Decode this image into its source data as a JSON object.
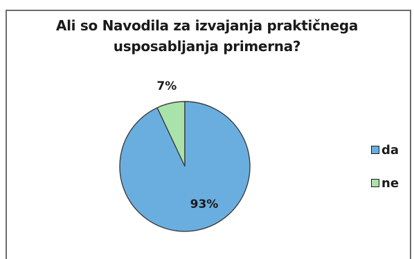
{
  "chart_data": {
    "type": "pie",
    "title_lines": [
      "Ali so Navodila za izvajanja praktičnega",
      "usposabljanja primerna?"
    ],
    "categories": [
      "da",
      "ne"
    ],
    "values": [
      93,
      7
    ],
    "value_labels": [
      "93%",
      "7%"
    ],
    "colors": [
      "#6aaee0",
      "#a9e3a9"
    ],
    "legend_position": "right"
  }
}
